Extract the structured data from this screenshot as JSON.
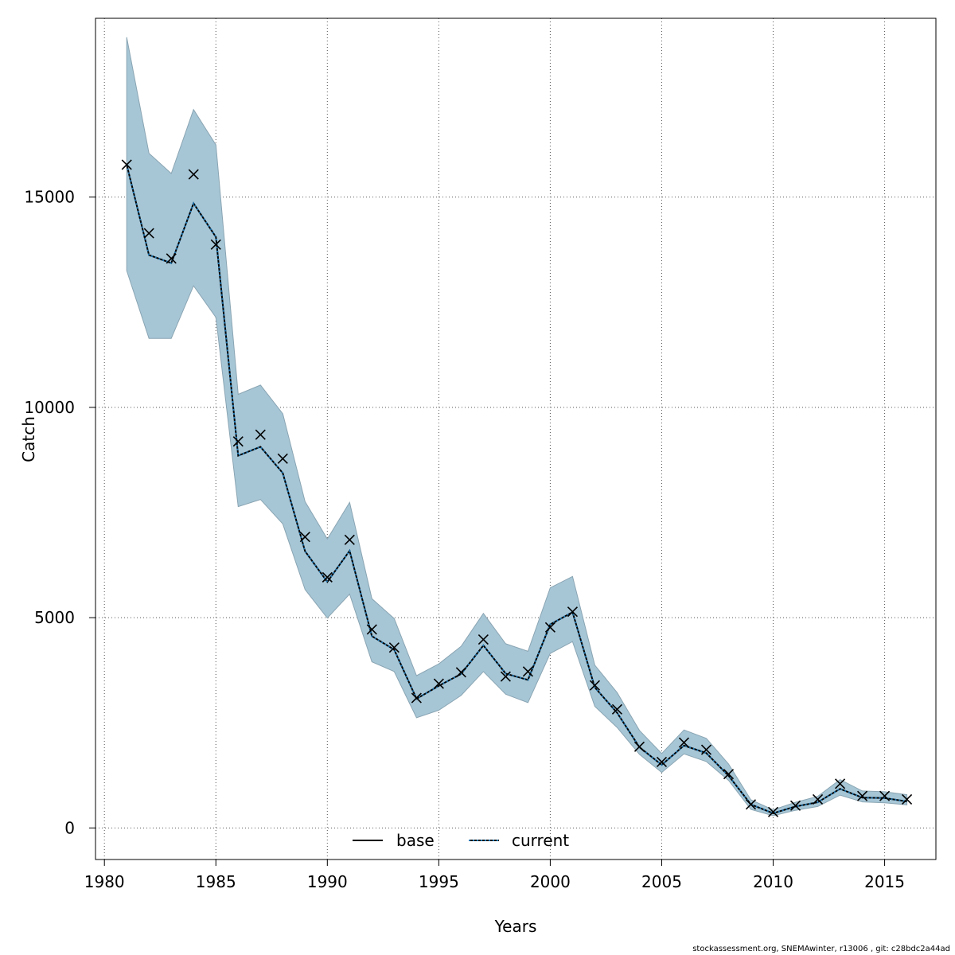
{
  "chart_data": {
    "type": "line",
    "xlabel": "Years",
    "ylabel": "Catch",
    "xlim": [
      1979.6,
      2017.3
    ],
    "ylim": [
      -750,
      19250
    ],
    "x_ticks": [
      "1980",
      "1985",
      "1990",
      "1995",
      "2000",
      "2005",
      "2010",
      "2015"
    ],
    "y_ticks": [
      "0",
      "5000",
      "10000",
      "15000"
    ],
    "grid": true,
    "legend_position": "bottom-center",
    "x": [
      1981,
      1982,
      1983,
      1984,
      1985,
      1986,
      1987,
      1988,
      1989,
      1990,
      1991,
      1992,
      1993,
      1994,
      1995,
      1996,
      1997,
      1998,
      1999,
      2000,
      2001,
      2002,
      2003,
      2004,
      2005,
      2006,
      2007,
      2008,
      2009,
      2010,
      2011,
      2012,
      2013,
      2014,
      2015,
      2016
    ],
    "series": [
      {
        "name": "base",
        "style": "solid",
        "color": "#000000",
        "values": [
          15770,
          13620,
          13430,
          14850,
          14050,
          8850,
          9060,
          8440,
          6580,
          5850,
          6590,
          4560,
          4240,
          3070,
          3380,
          3660,
          4340,
          3670,
          3520,
          4840,
          5130,
          3340,
          2740,
          1920,
          1500,
          1960,
          1780,
          1240,
          560,
          350,
          510,
          610,
          930,
          720,
          710,
          630
        ]
      },
      {
        "name": "current",
        "style": "dotted",
        "color": "#1f78b4",
        "values": [
          15770,
          13620,
          13430,
          14850,
          14050,
          8850,
          9060,
          8440,
          6580,
          5850,
          6590,
          4560,
          4240,
          3070,
          3380,
          3660,
          4340,
          3670,
          3520,
          4840,
          5130,
          3340,
          2740,
          1920,
          1500,
          1960,
          1780,
          1240,
          560,
          350,
          510,
          610,
          930,
          720,
          710,
          630
        ]
      }
    ],
    "observed": {
      "marker": "x",
      "values": [
        15770,
        14140,
        13540,
        15540,
        13870,
        9190,
        9350,
        8780,
        6920,
        5960,
        6850,
        4720,
        4290,
        3090,
        3430,
        3700,
        4480,
        3600,
        3720,
        4770,
        5140,
        3390,
        2820,
        1930,
        1570,
        2030,
        1860,
        1280,
        560,
        380,
        530,
        680,
        1050,
        760,
        760,
        680
      ]
    },
    "band": {
      "color": "#a6c6d6",
      "upper": [
        18800,
        16040,
        15560,
        17080,
        16240,
        10310,
        10530,
        9850,
        7760,
        6870,
        7740,
        5450,
        4980,
        3620,
        3900,
        4320,
        5100,
        4380,
        4200,
        5710,
        5980,
        3870,
        3220,
        2320,
        1770,
        2330,
        2130,
        1520,
        670,
        430,
        610,
        750,
        1150,
        880,
        860,
        790
      ],
      "lower": [
        13250,
        11640,
        11640,
        12890,
        12140,
        7640,
        7810,
        7230,
        5670,
        4990,
        5560,
        3950,
        3720,
        2620,
        2800,
        3150,
        3720,
        3180,
        2980,
        4150,
        4430,
        2890,
        2390,
        1750,
        1320,
        1760,
        1580,
        1130,
        440,
        290,
        420,
        510,
        780,
        620,
        600,
        550
      ]
    }
  },
  "footer_note": "stockassessment.org, SNEMAwinter, r13006 , git: c28bdc2a44ad"
}
